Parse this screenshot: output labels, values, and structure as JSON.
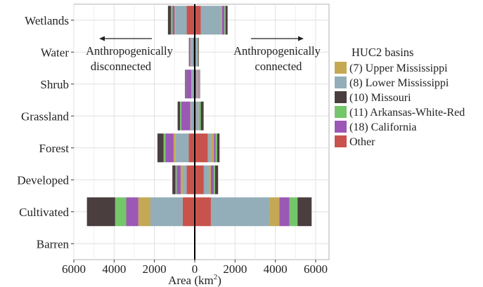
{
  "chart_data": {
    "type": "bar",
    "orientation": "horizontal",
    "stacked": true,
    "diverging": true,
    "categories": [
      "Wetlands",
      "Water",
      "Shrub",
      "Grassland",
      "Forest",
      "Developed",
      "Cultivated",
      "Barren"
    ],
    "xlabel": "Area (km",
    "xlabel_sup": "2",
    "xlabel_close": ")",
    "xlim": [
      -6000,
      6300
    ],
    "xticks": [
      -6000,
      -4000,
      -2000,
      0,
      2000,
      4000,
      6000
    ],
    "xtick_labels": [
      "6000",
      "4000",
      "2000",
      "0",
      "2000",
      "4000",
      "6000"
    ],
    "grid": true,
    "annotations": {
      "left_line1": "Anthropogenically",
      "left_line2": "disconnected",
      "right_line1": "Anthropogenically",
      "right_line2": "connected"
    },
    "legend": {
      "title": "HUC2 basins",
      "position": "right"
    },
    "series": [
      {
        "name": "(7) Upper Mississippi",
        "color": "#C4A854",
        "disconnected": [
          50,
          20,
          10,
          20,
          100,
          100,
          600,
          0
        ],
        "connected": [
          50,
          20,
          10,
          20,
          150,
          100,
          500,
          0
        ]
      },
      {
        "name": "(8) Lower Mississippi",
        "color": "#93ADB9",
        "disconnected": [
          550,
          120,
          100,
          150,
          650,
          200,
          1600,
          0
        ],
        "connected": [
          1000,
          100,
          100,
          150,
          150,
          250,
          2900,
          0
        ]
      },
      {
        "name": "(10) Missouri",
        "color": "#4A3E3E",
        "disconnected": [
          150,
          30,
          40,
          120,
          300,
          150,
          1400,
          10
        ],
        "connected": [
          100,
          20,
          20,
          140,
          120,
          150,
          700,
          10
        ]
      },
      {
        "name": "(11) Arkansas-White-Red",
        "color": "#74C66A",
        "disconnected": [
          80,
          10,
          20,
          60,
          100,
          60,
          550,
          0
        ],
        "connected": [
          60,
          10,
          20,
          60,
          80,
          60,
          400,
          0
        ]
      },
      {
        "name": "(18) California",
        "color": "#9B58B5",
        "disconnected": [
          100,
          30,
          250,
          450,
          400,
          200,
          600,
          0
        ],
        "connected": [
          120,
          20,
          30,
          20,
          80,
          150,
          500,
          0
        ]
      },
      {
        "name": "Other",
        "color": "#C8534D",
        "disconnected": [
          400,
          80,
          60,
          50,
          300,
          400,
          600,
          20
        ],
        "connected": [
          300,
          40,
          80,
          50,
          650,
          450,
          800,
          20
        ]
      }
    ],
    "stack_order_from_center": [
      "Other",
      "(8) Lower Mississippi",
      "(7) Upper Mississippi",
      "(18) California",
      "(11) Arkansas-White-Red",
      "(10) Missouri"
    ]
  }
}
